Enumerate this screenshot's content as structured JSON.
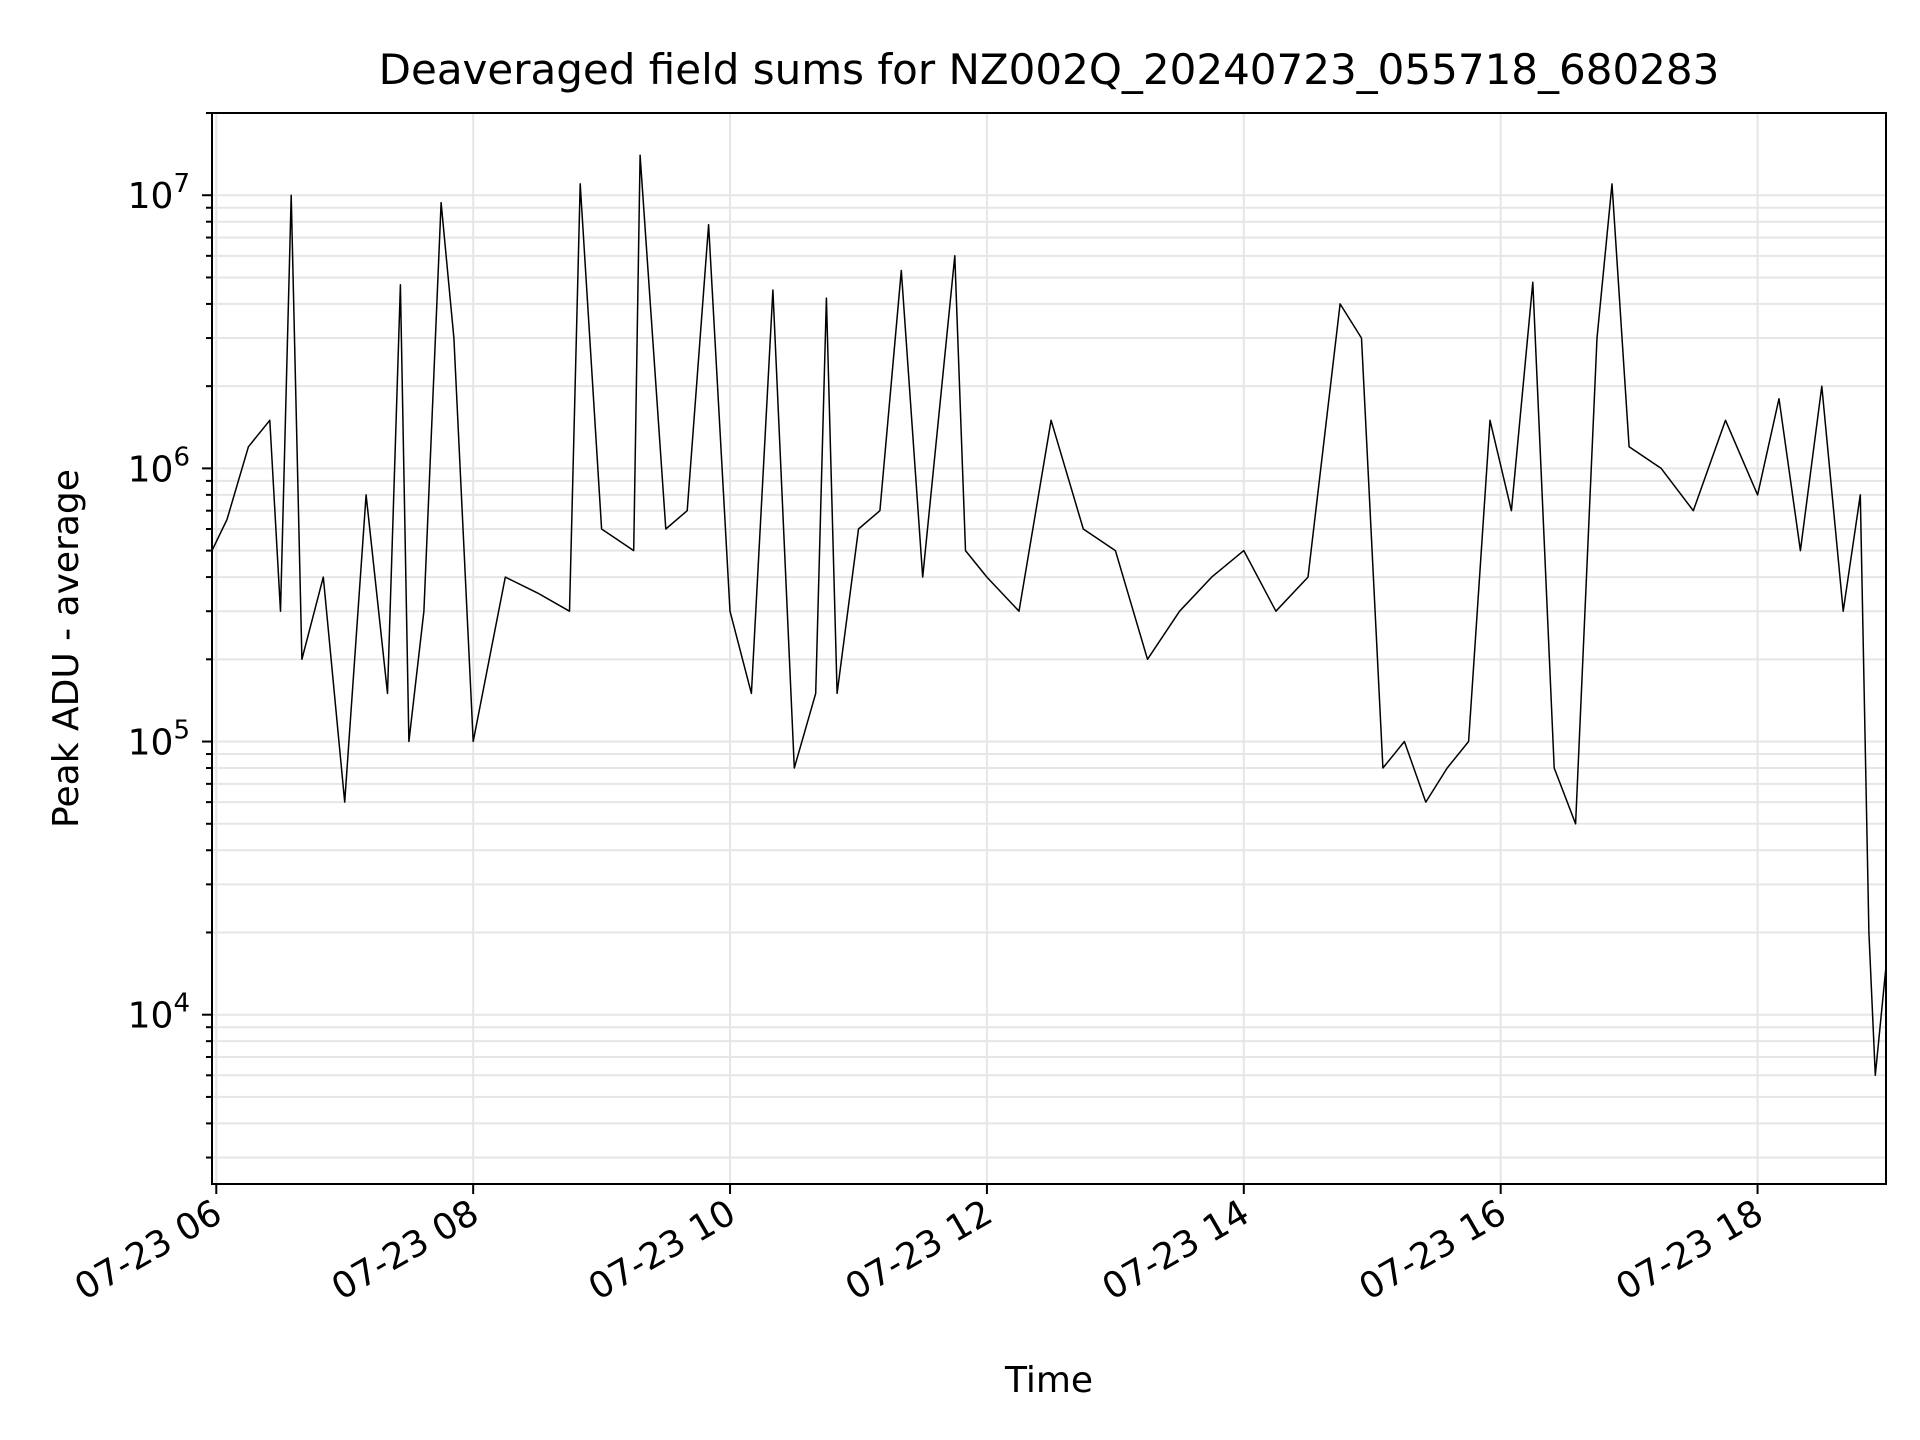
{
  "chart_data": {
    "type": "line",
    "title": "Deaveraged field sums for NZ002Q_20240723_055718_680283",
    "xlabel": "Time",
    "ylabel": "Peak ADU - average",
    "yscale": "log",
    "ylim": [
      2400,
      20000000
    ],
    "xlim": [
      "2024-07-23 05:58",
      "2024-07-23 19:00"
    ],
    "grid": true,
    "line_color": "#000000",
    "grid_color": "#e6e6e6",
    "x_ticks": [
      {
        "value": "2024-07-23 06:00",
        "label": "07-23 06"
      },
      {
        "value": "2024-07-23 08:00",
        "label": "07-23 08"
      },
      {
        "value": "2024-07-23 10:00",
        "label": "07-23 10"
      },
      {
        "value": "2024-07-23 12:00",
        "label": "07-23 12"
      },
      {
        "value": "2024-07-23 14:00",
        "label": "07-23 14"
      },
      {
        "value": "2024-07-23 16:00",
        "label": "07-23 16"
      },
      {
        "value": "2024-07-23 18:00",
        "label": "07-23 18"
      }
    ],
    "y_ticks": [
      {
        "value": 10000,
        "base": "10",
        "exp": "4"
      },
      {
        "value": 100000,
        "base": "10",
        "exp": "5"
      },
      {
        "value": 1000000,
        "base": "10",
        "exp": "6"
      },
      {
        "value": 10000000,
        "base": "10",
        "exp": "7"
      }
    ],
    "series": [
      {
        "x": [
          "2024-07-23 05:58",
          "2024-07-23 06:05",
          "2024-07-23 06:15",
          "2024-07-23 06:25",
          "2024-07-23 06:30",
          "2024-07-23 06:35",
          "2024-07-23 06:40",
          "2024-07-23 06:50",
          "2024-07-23 07:00",
          "2024-07-23 07:10",
          "2024-07-23 07:20",
          "2024-07-23 07:26",
          "2024-07-23 07:30",
          "2024-07-23 07:37",
          "2024-07-23 07:45",
          "2024-07-23 07:51",
          "2024-07-23 08:00",
          "2024-07-23 08:15",
          "2024-07-23 08:30",
          "2024-07-23 08:45",
          "2024-07-23 08:50",
          "2024-07-23 09:00",
          "2024-07-23 09:15",
          "2024-07-23 09:18",
          "2024-07-23 09:30",
          "2024-07-23 09:40",
          "2024-07-23 09:50",
          "2024-07-23 10:00",
          "2024-07-23 10:10",
          "2024-07-23 10:20",
          "2024-07-23 10:30",
          "2024-07-23 10:40",
          "2024-07-23 10:45",
          "2024-07-23 10:50",
          "2024-07-23 11:00",
          "2024-07-23 11:10",
          "2024-07-23 11:20",
          "2024-07-23 11:30",
          "2024-07-23 11:45",
          "2024-07-23 11:50",
          "2024-07-23 12:00",
          "2024-07-23 12:15",
          "2024-07-23 12:30",
          "2024-07-23 12:45",
          "2024-07-23 13:00",
          "2024-07-23 13:15",
          "2024-07-23 13:30",
          "2024-07-23 13:45",
          "2024-07-23 14:00",
          "2024-07-23 14:15",
          "2024-07-23 14:30",
          "2024-07-23 14:45",
          "2024-07-23 14:55",
          "2024-07-23 15:05",
          "2024-07-23 15:15",
          "2024-07-23 15:25",
          "2024-07-23 15:35",
          "2024-07-23 15:45",
          "2024-07-23 15:55",
          "2024-07-23 16:05",
          "2024-07-23 16:15",
          "2024-07-23 16:25",
          "2024-07-23 16:35",
          "2024-07-23 16:45",
          "2024-07-23 16:52",
          "2024-07-23 17:00",
          "2024-07-23 17:15",
          "2024-07-23 17:30",
          "2024-07-23 17:45",
          "2024-07-23 18:00",
          "2024-07-23 18:10",
          "2024-07-23 18:20",
          "2024-07-23 18:30",
          "2024-07-23 18:40",
          "2024-07-23 18:48",
          "2024-07-23 18:52",
          "2024-07-23 18:55",
          "2024-07-23 19:00"
        ],
        "y": [
          500000,
          650000,
          1200000,
          1500000,
          300000,
          10000000,
          200000,
          400000,
          60000,
          800000,
          150000,
          4700000,
          100000,
          300000,
          9400000,
          3000000,
          100000,
          400000,
          350000,
          300000,
          11000000,
          600000,
          500000,
          14000000,
          600000,
          700000,
          7800000,
          300000,
          150000,
          4500000,
          80000,
          150000,
          4200000,
          150000,
          600000,
          700000,
          5300000,
          400000,
          6000000,
          500000,
          400000,
          300000,
          1500000,
          600000,
          500000,
          200000,
          300000,
          400000,
          500000,
          300000,
          400000,
          4000000,
          3000000,
          80000,
          100000,
          60000,
          80000,
          100000,
          1500000,
          700000,
          4800000,
          80000,
          50000,
          3000000,
          11000000,
          1200000,
          1000000,
          700000,
          1500000,
          800000,
          1800000,
          500000,
          2000000,
          300000,
          800000,
          20000,
          6000,
          15000
        ]
      }
    ]
  }
}
